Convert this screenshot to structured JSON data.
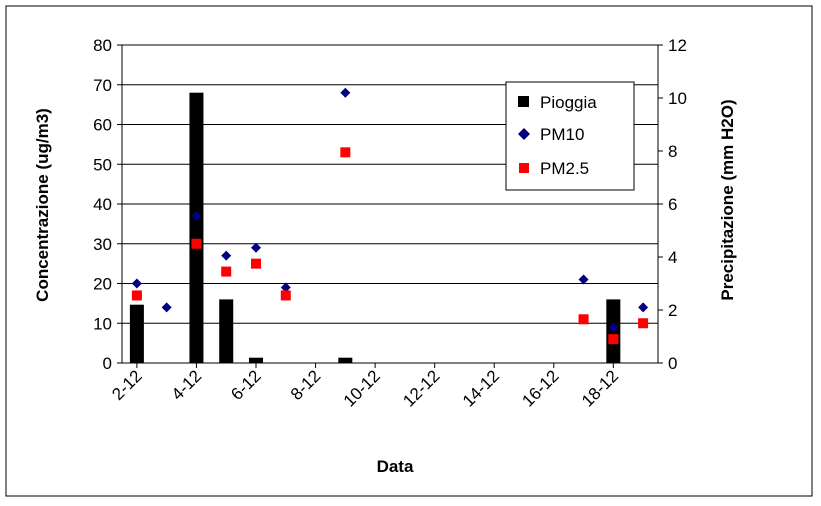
{
  "chart_data": {
    "type": "bar+scatter",
    "xlabel": "Data",
    "ylabel_left": "Concentrazione (ug/m3)",
    "ylabel_right": "Precipitazione (mm H2O)",
    "ylim_left": [
      0,
      80
    ],
    "ylim_right": [
      0,
      12
    ],
    "yticks_left": [
      0,
      10,
      20,
      30,
      40,
      50,
      60,
      70,
      80
    ],
    "yticks_right": [
      0,
      2,
      4,
      6,
      8,
      10,
      12
    ],
    "x_tick_labels": [
      "2-12",
      "4-12",
      "6-12",
      "8-12",
      "10-12",
      "12-12",
      "14-12",
      "16-12",
      "18-12"
    ],
    "x_tick_days": [
      2,
      4,
      6,
      8,
      10,
      12,
      14,
      16,
      18
    ],
    "x_range_days": [
      1.5,
      19.5
    ],
    "gridlines": "horizontal",
    "legend_position": "top-right",
    "legend": [
      "Pioggia",
      "PM10",
      "PM2.5"
    ],
    "series": [
      {
        "name": "Pioggia",
        "kind": "bar",
        "axis": "right",
        "color": "#000000",
        "x": [
          2,
          4,
          5,
          6,
          9,
          18
        ],
        "values": [
          2.2,
          10.2,
          2.4,
          0.2,
          0.2,
          2.4
        ]
      },
      {
        "name": "PM10",
        "kind": "scatter",
        "marker": "diamond",
        "axis": "left",
        "color": "#000080",
        "x": [
          2,
          3,
          4,
          5,
          6,
          7,
          9,
          17,
          18,
          19
        ],
        "values": [
          20,
          14,
          37,
          27,
          29,
          19,
          68,
          21,
          9,
          14
        ]
      },
      {
        "name": "PM2.5",
        "kind": "scatter",
        "marker": "square",
        "axis": "left",
        "color": "#ff0000",
        "x": [
          2,
          4,
          5,
          6,
          7,
          9,
          17,
          18,
          19
        ],
        "values": [
          17,
          30,
          23,
          25,
          17,
          53,
          11,
          6,
          10
        ]
      }
    ]
  }
}
